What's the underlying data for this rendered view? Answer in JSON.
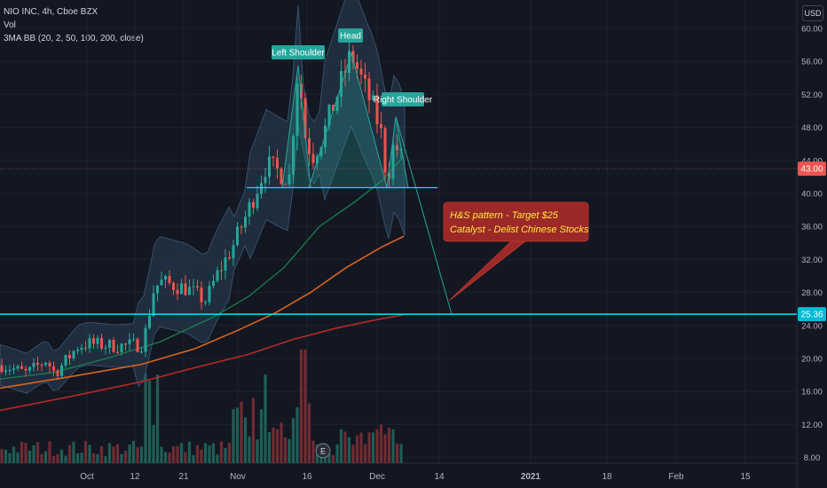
{
  "header": {
    "symbol": "NIO INC, 4h, Cboe BZX",
    "volume_label": "Vol",
    "indicator_label": "3MA BB (20, 2, 50, 100, 200, close)",
    "currency": "USD"
  },
  "chart_data": {
    "type": "candlestick",
    "price_axis": {
      "ticks": [
        8,
        12,
        16,
        20,
        24,
        28,
        32,
        36,
        40,
        44,
        48,
        52,
        56,
        60
      ],
      "tick_labels": [
        "8.00",
        "12.00",
        "16.00",
        "20.00",
        "24.00",
        "28.00",
        "32.00",
        "36.00",
        "40.00",
        "44.00",
        "48.00",
        "52.00",
        "56.00",
        "60.00"
      ],
      "ylim": [
        5.4,
        61.9
      ]
    },
    "time_axis": {
      "labels": [
        "Oct",
        "12",
        "21",
        "Nov",
        "16",
        "Dec",
        "14",
        "2021",
        "18",
        "Feb",
        "15"
      ]
    },
    "price_labels": {
      "last": "43.00",
      "target": "25.36"
    },
    "levels": {
      "current_price": 43.0,
      "neckline": 40.7,
      "target": 25.36
    },
    "annotations": {
      "left_shoulder": "Left Shoulder",
      "head": "Head",
      "right_shoulder": "Right Shoulder",
      "callout_line1": "H&S pattern - Target $25",
      "callout_line2": "Catalyst - Delist Chinese Stocks"
    },
    "moving_averages": [
      {
        "color": "#1e7d4f"
      },
      {
        "color": "#d9651e"
      },
      {
        "color": "#b8282b"
      }
    ],
    "colors": {
      "up": "#26a69a",
      "down": "#ef5350",
      "cyan": "#00e5ff",
      "pattern": "#26a69a",
      "callout_bg": "#9c2828",
      "callout_text": "#ffeb3b",
      "band_fill": "#2a3f56"
    }
  }
}
